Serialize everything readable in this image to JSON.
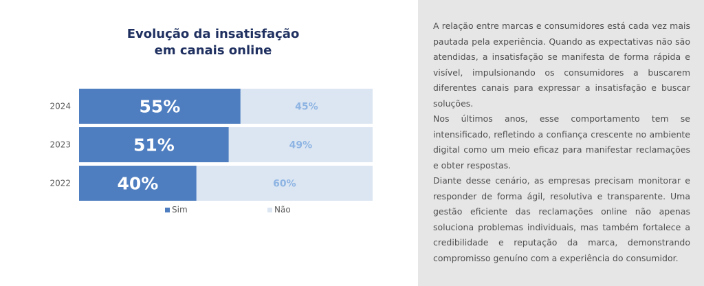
{
  "chart_data": {
    "type": "bar",
    "stacked": true,
    "orientation": "horizontal",
    "title_lines": [
      "Evolução da insatisfação",
      "em canais online"
    ],
    "categories": [
      "2024",
      "2023",
      "2022"
    ],
    "series": [
      {
        "name": "Sim",
        "values": [
          55,
          51,
          40
        ],
        "labels": [
          "55%",
          "51%",
          "40%"
        ],
        "color": "#4f7ec0"
      },
      {
        "name": "Não",
        "values": [
          45,
          49,
          60
        ],
        "labels": [
          "45%",
          "49%",
          "60%"
        ],
        "color": "#dce6f2"
      }
    ],
    "xlim": [
      0,
      100
    ],
    "label_colors": {
      "Sim": "#ffffff",
      "Não": "#8eb4e3"
    },
    "grid": false,
    "legend_position": "bottom"
  },
  "text": {
    "paragraphs": [
      "A relação entre marcas e consumidores está cada vez mais pautada pela experiência. Quando as expectativas não são atendidas, a insatisfação se manifesta de forma rápida e visível, impulsionando os consumidores a buscarem diferentes canais para expressar a insatisfação e buscar soluções.",
      "Nos últimos anos, esse comportamento tem se intensificado, refletindo a confiança crescente no ambiente digital como um meio eficaz para manifestar reclamações e obter respostas.",
      "Diante desse cenário, as empresas precisam monitorar e responder de forma ágil, resolutiva e transparente. Uma gestão eficiente das reclamações online não apenas soluciona problemas individuais, mas também fortalece a credibilidade e reputação da marca, demonstrando compromisso genuíno com a experiência do consumidor."
    ]
  },
  "colors": {
    "title": "#1f3060",
    "text_panel_bg": "#e6e6e6",
    "body_text": "#4f4f4f",
    "category_label": "#595959"
  }
}
